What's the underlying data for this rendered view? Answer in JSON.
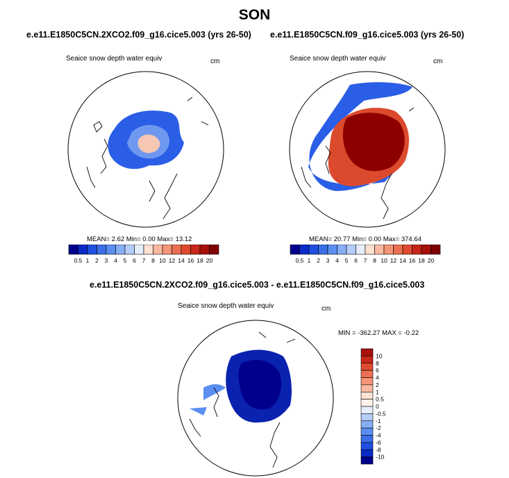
{
  "figure": {
    "season": "SON",
    "panels": [
      {
        "case": "e.e11.E1850C5CN.2XCO2.f09_g16.cice5.003 (yrs 26-50)",
        "field": "Seaice snow depth water equiv",
        "units": "cm",
        "stats": {
          "mean_label": "MEAN=",
          "mean": "2.62",
          "min_label": "Min=",
          "min": "0.00",
          "max_label": "Max=",
          "max": "13.12"
        }
      },
      {
        "case": "e.e11.E1850C5CN.f09_g16.cice5.003 (yrs 26-50)",
        "field": "Seaice snow depth water equiv",
        "units": "cm",
        "stats": {
          "mean_label": "MEAN=",
          "mean": "20.77",
          "min_label": "Min=",
          "min": "0.00",
          "max_label": "Max=",
          "max": "374.64"
        }
      }
    ],
    "diff": {
      "title": "e.e11.E1850C5CN.2XCO2.f09_g16.cice5.003 - e.e11.E1850C5CN.f09_g16.cice5.003",
      "field": "Seaice snow depth water equiv",
      "units": "cm",
      "minmax": "MIN = -362.27 MAX =  -0.22"
    },
    "colorbar_abs": {
      "labels": [
        "0.5",
        "1",
        "2",
        "3",
        "4",
        "5",
        "6",
        "7",
        "8",
        "10",
        "12",
        "14",
        "16",
        "18",
        "20"
      ],
      "colors": [
        "#00008c",
        "#0a2bc8",
        "#1f4fe0",
        "#3a6fe8",
        "#5a8ff0",
        "#86aef5",
        "#b4cdf9",
        "#e6eefb",
        "#fde1d2",
        "#f9b9a0",
        "#f49478",
        "#ec6f52",
        "#e04a30",
        "#c8261a",
        "#a8100a",
        "#7e0000"
      ]
    },
    "colorbar_diff": {
      "labels": [
        "10",
        "8",
        "6",
        "4",
        "2",
        "1",
        "0.5",
        "0",
        "-0.5",
        "-1",
        "-2",
        "-4",
        "-6",
        "-8",
        "-10"
      ],
      "colors": [
        "#a8100a",
        "#c8261a",
        "#e04a30",
        "#ec6f52",
        "#f49478",
        "#f9b9a0",
        "#fde1d2",
        "#fff2ea",
        "#e6eefb",
        "#b4cdf9",
        "#86aef5",
        "#5a8ff0",
        "#3a6fe8",
        "#1f4fe0",
        "#0a2bc8",
        "#00008c"
      ]
    },
    "map_colors": {
      "land_outline": "#000000",
      "ocean": "#ffffff"
    }
  }
}
